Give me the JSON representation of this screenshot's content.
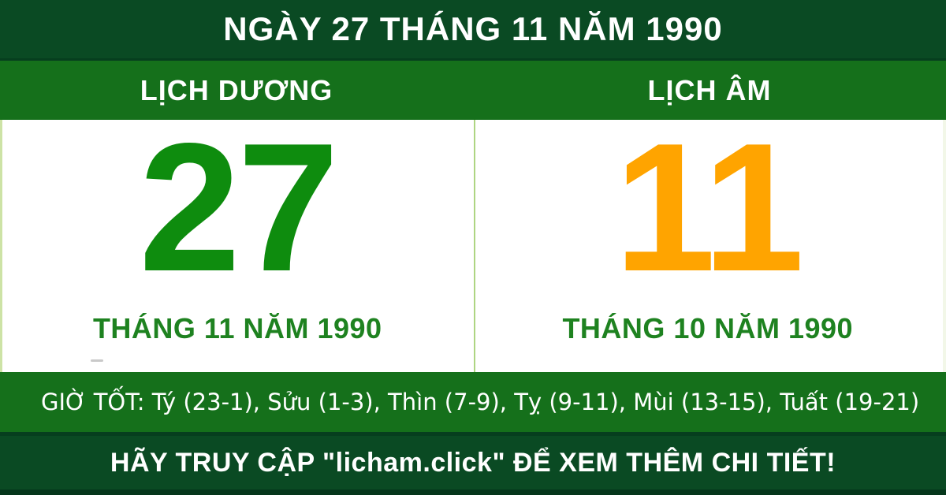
{
  "banner": {
    "title": "NGÀY 27 THÁNG 11 NĂM 1990"
  },
  "columns": {
    "solar": {
      "header": "LỊCH DƯƠNG",
      "day": "27",
      "month_year": "THÁNG 11 NĂM 1990"
    },
    "lunar": {
      "header": "LỊCH ÂM",
      "day": "11",
      "month_year": "THÁNG 10 NĂM 1990"
    }
  },
  "good_hours": {
    "text": "GIỜ TỐT: Tý (23-1), Sửu (1-3), Thìn (7-9), Tỵ (9-11), Mùi (13-15), Tuất (19-21)"
  },
  "footer": {
    "text": "HÃY TRUY CẬP \"licham.click\" ĐỂ XEM THÊM CHI TIẾT!"
  },
  "colors": {
    "dark_green": "#0a4a23",
    "green": "#15701b",
    "day_solar": "#0e8c0e",
    "day_lunar": "#ffa400",
    "label_green": "#1e8220",
    "divider_green": "#aed582",
    "edge_green": "#cde3a6",
    "edge_faint": "#f2f7e8",
    "darker_green": "#063e1e",
    "darkest_green": "#05361b",
    "white": "#ffffff"
  }
}
